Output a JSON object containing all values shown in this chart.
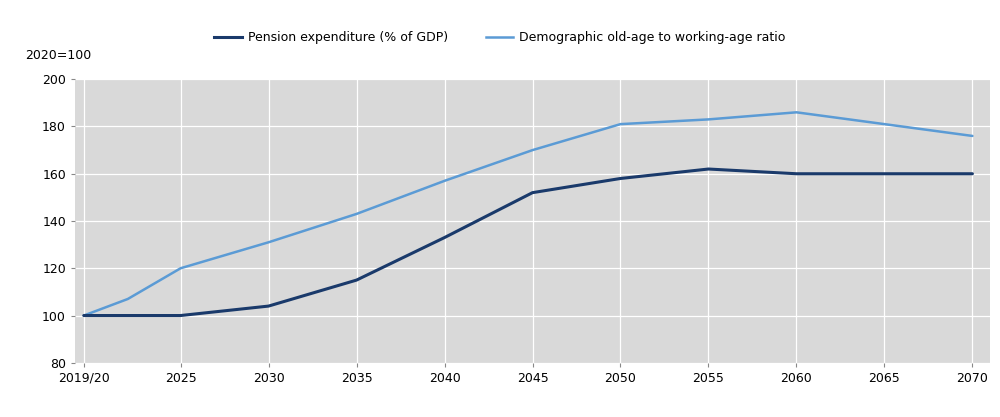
{
  "pension_x": [
    2019.5,
    2022,
    2025,
    2030,
    2035,
    2040,
    2045,
    2050,
    2055,
    2060,
    2065,
    2070
  ],
  "pension_y": [
    100,
    100,
    100,
    104,
    115,
    133,
    152,
    158,
    162,
    160,
    160,
    160
  ],
  "demographic_x": [
    2019.5,
    2022,
    2025,
    2030,
    2035,
    2040,
    2045,
    2050,
    2055,
    2060,
    2065,
    2070
  ],
  "demographic_y": [
    100,
    107,
    120,
    131,
    143,
    157,
    170,
    181,
    183,
    186,
    181,
    176
  ],
  "pension_color": "#1a3a6b",
  "demographic_color": "#5b9bd5",
  "plot_bg": "#d9d9d9",
  "legend_bg": "#d9d9d9",
  "figure_bg": "#ffffff",
  "ylim": [
    80,
    200
  ],
  "xlim": [
    2019.0,
    2071.0
  ],
  "yticks": [
    80,
    100,
    120,
    140,
    160,
    180,
    200
  ],
  "xticks": [
    2019.5,
    2025,
    2030,
    2035,
    2040,
    2045,
    2050,
    2055,
    2060,
    2065,
    2070
  ],
  "xticklabels": [
    "2019/20",
    "2025",
    "2030",
    "2035",
    "2040",
    "2045",
    "2050",
    "2055",
    "2060",
    "2065",
    "2070"
  ],
  "ylabel_text": "2020=100",
  "legend_pension": "Pension expenditure (% of GDP)",
  "legend_demographic": "Demographic old-age to working-age ratio",
  "pension_linewidth": 2.2,
  "demographic_linewidth": 1.8,
  "tick_fontsize": 9,
  "label_fontsize": 9,
  "legend_fontsize": 9
}
